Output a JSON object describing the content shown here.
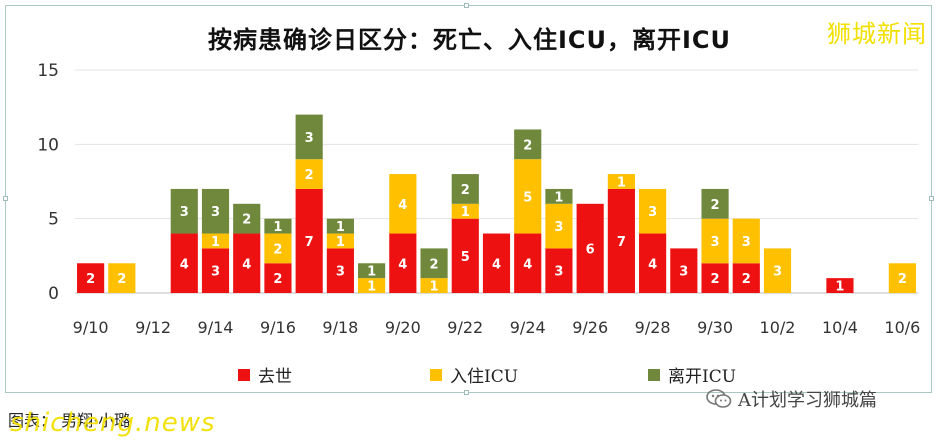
{
  "header": {
    "brand": "狮城新闻"
  },
  "footer": {
    "source": "图表：  男翔·小璐",
    "watermark": "shicheng.news",
    "wechat_account": "A计划学习狮城篇"
  },
  "colors": {
    "deaths": "#ee1111",
    "icu_in": "#ffc000",
    "icu_out": "#70883c"
  },
  "chart_data": {
    "type": "bar",
    "stacked": true,
    "title": "按病患确诊日区分：死亡、入住ICU，离开ICU",
    "ylim": [
      0,
      15
    ],
    "yticks": [
      0,
      5,
      10,
      15
    ],
    "grid": true,
    "legend_position": "bottom",
    "categories": [
      "9/10",
      "9/11",
      "9/12",
      "9/13",
      "9/14",
      "9/15",
      "9/16",
      "9/17",
      "9/18",
      "9/19",
      "9/20",
      "9/21",
      "9/22",
      "9/23",
      "9/24",
      "9/25",
      "9/26",
      "9/27",
      "9/28",
      "9/29",
      "9/30",
      "10/1",
      "10/2",
      "10/3",
      "10/4",
      "10/5",
      "10/6"
    ],
    "xtick_labels": [
      "9/10",
      "",
      "9/12",
      "",
      "9/14",
      "",
      "9/16",
      "",
      "9/18",
      "",
      "9/20",
      "",
      "9/22",
      "",
      "9/24",
      "",
      "9/26",
      "",
      "9/28",
      "",
      "9/30",
      "",
      "10/2",
      "",
      "10/4",
      "",
      "10/6"
    ],
    "series": [
      {
        "name": "去世",
        "color": "#ee1111",
        "values": [
          2,
          0,
          0,
          4,
          3,
          4,
          2,
          7,
          3,
          0,
          4,
          0,
          5,
          4,
          4,
          3,
          6,
          7,
          4,
          3,
          2,
          2,
          0,
          0,
          1,
          0,
          0
        ]
      },
      {
        "name": "入住ICU",
        "color": "#ffc000",
        "values": [
          0,
          2,
          0,
          0,
          1,
          0,
          2,
          2,
          1,
          1,
          4,
          1,
          1,
          0,
          5,
          3,
          0,
          1,
          3,
          0,
          3,
          3,
          3,
          0,
          0,
          0,
          2
        ]
      },
      {
        "name": "离开ICU",
        "color": "#70883c",
        "values": [
          0,
          0,
          0,
          3,
          3,
          2,
          1,
          3,
          1,
          1,
          0,
          2,
          2,
          0,
          2,
          1,
          0,
          0,
          0,
          0,
          2,
          0,
          0,
          0,
          0,
          0,
          0
        ]
      }
    ]
  }
}
